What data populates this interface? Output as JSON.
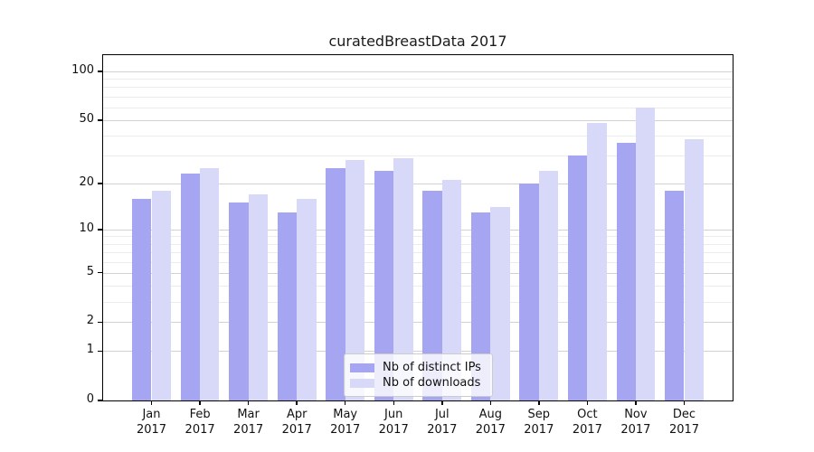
{
  "chart_data": {
    "type": "bar",
    "title": "curatedBreastData 2017",
    "categories": [
      "Jan",
      "Feb",
      "Mar",
      "Apr",
      "May",
      "Jun",
      "Jul",
      "Aug",
      "Sep",
      "Oct",
      "Nov",
      "Dec"
    ],
    "category_year": "2017",
    "x_tick_labels": [
      "Jan\n2017",
      "Feb\n2017",
      "Mar\n2017",
      "Apr\n2017",
      "May\n2017",
      "Jun\n2017",
      "Jul\n2017",
      "Aug\n2017",
      "Sep\n2017",
      "Oct\n2017",
      "Nov\n2017",
      "Dec\n2017"
    ],
    "series": [
      {
        "name": "Nb of distinct IPs",
        "color": "#a5a5f1",
        "values": [
          16,
          23,
          15,
          13,
          25,
          24,
          18,
          13,
          20,
          30,
          36,
          18
        ]
      },
      {
        "name": "Nb of downloads",
        "color": "#d8d8f8",
        "values": [
          18,
          25,
          17,
          16,
          28,
          29,
          21,
          14,
          24,
          48,
          60,
          38
        ]
      }
    ],
    "y_scale": "log1p",
    "y_ticks": [
      0,
      1,
      2,
      5,
      10,
      20,
      50,
      100
    ],
    "y_minor_gridlines": [
      3,
      4,
      6,
      7,
      8,
      9,
      30,
      40,
      60,
      70,
      80,
      90
    ],
    "ylim": [
      0,
      110
    ],
    "xlabel": "",
    "ylabel": "",
    "grid": "horizontal",
    "legend_position": "bottom-center",
    "colors": {
      "major_grid": "#d2d2d2",
      "minor_grid": "#ececec",
      "spine": "#000000",
      "text": "#111111"
    }
  }
}
